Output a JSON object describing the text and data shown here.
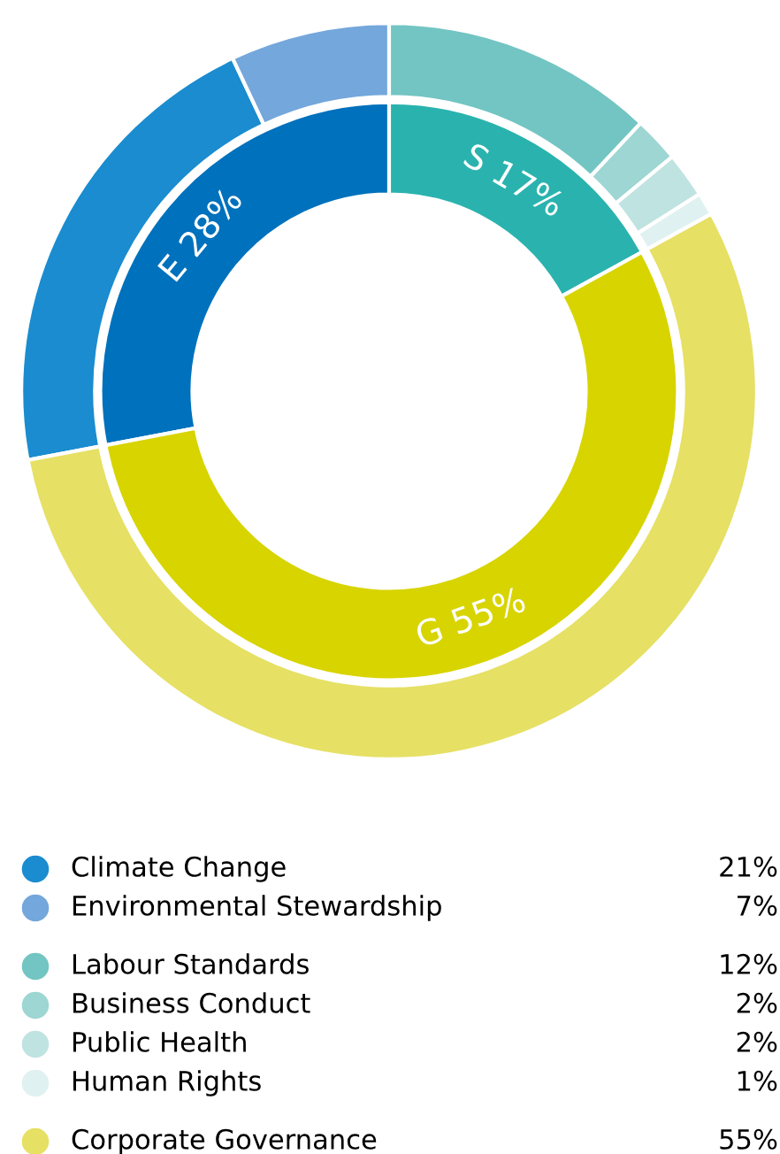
{
  "chart_data": {
    "type": "donut",
    "categories": [
      "Climate Change",
      "Environmental Stewardship",
      "Labour Standards",
      "Business Conduct",
      "Public Health",
      "Human Rights",
      "Corporate Governance"
    ],
    "legend": "bottom",
    "series": [
      {
        "values": [
          28,
          null,
          17,
          null,
          null,
          null,
          55
        ],
        "colors": [
          "#0071bc",
          null,
          "#2ab3ae",
          null,
          null,
          null,
          "#d8d400"
        ],
        "value_labels": [
          "E 28%",
          null,
          "S 17%",
          null,
          null,
          null,
          "G 55%"
        ]
      },
      {
        "values": [
          21,
          7,
          12,
          2,
          2,
          1,
          55
        ],
        "colors": [
          "#1a8ccf",
          "#74a7db",
          "#72c5c2",
          "#9dd6d3",
          "#bfe3e1",
          "#dff1f0",
          "#e6e064"
        ],
        "value_labels": [
          "21%",
          "7%",
          "12%",
          "2%",
          "2%",
          "1%",
          "55%"
        ]
      }
    ]
  }
}
